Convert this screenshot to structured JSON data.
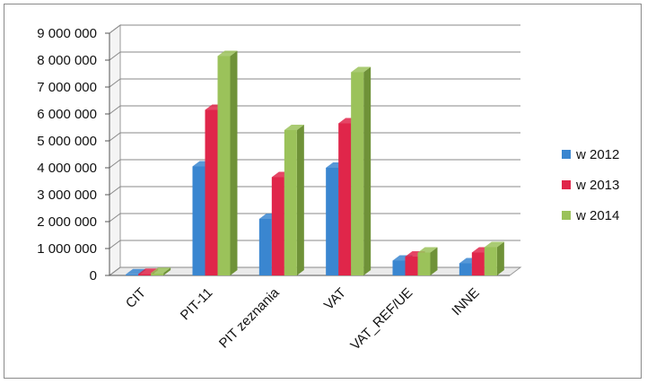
{
  "chart_data": {
    "type": "bar",
    "categories": [
      "CIT",
      "PIT-11",
      "PIT zeznania",
      "VAT",
      "VAT_REF/UE",
      "INNE"
    ],
    "series": [
      {
        "name": "w 2012",
        "values": [
          40000,
          4050000,
          2100000,
          4000000,
          550000,
          450000
        ]
      },
      {
        "name": "w 2013",
        "values": [
          60000,
          6150000,
          3650000,
          5650000,
          700000,
          850000
        ]
      },
      {
        "name": "w 2014",
        "values": [
          90000,
          8150000,
          5400000,
          7550000,
          850000,
          1050000
        ]
      }
    ],
    "yticks": [
      "0",
      "1 000 000",
      "2 000 000",
      "3 000 000",
      "4 000 000",
      "5 000 000",
      "6 000 000",
      "7 000 000",
      "8 000 000",
      "9 000 000"
    ],
    "ylim": [
      0,
      9000000
    ],
    "legend_position": "right",
    "grid": true,
    "colors": [
      "#3a86d0",
      "#e0264a",
      "#9bc25a"
    ],
    "colors_dark": [
      "#2564a3",
      "#a81a35",
      "#6f9238"
    ]
  }
}
